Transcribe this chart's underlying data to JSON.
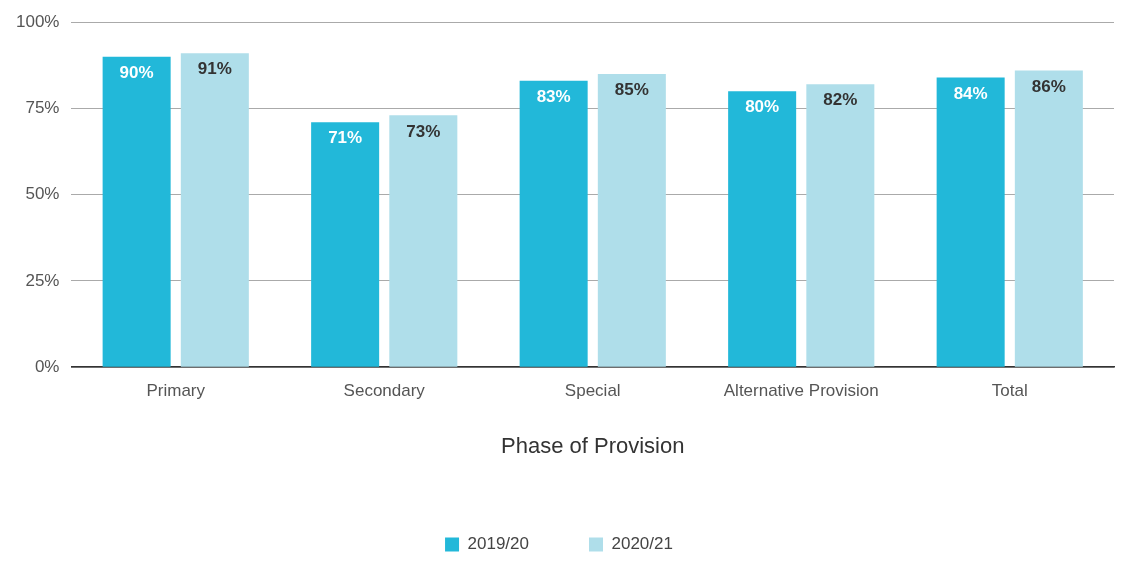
{
  "chart_data": {
    "type": "bar",
    "xlabel": "Phase of Provision",
    "categories": [
      "Primary",
      "Secondary",
      "Special",
      "Alternative Provision",
      "Total"
    ],
    "series": [
      {
        "name": "2019/20",
        "color": "#22b8d9",
        "values": [
          90,
          71,
          83,
          80,
          84
        ],
        "value_labels": [
          "90%",
          "71%",
          "83%",
          "80%",
          "84%"
        ]
      },
      {
        "name": "2020/21",
        "color": "#afdeea",
        "values": [
          91,
          73,
          85,
          82,
          86
        ],
        "value_labels": [
          "91%",
          "73%",
          "85%",
          "82%",
          "86%"
        ]
      }
    ],
    "ylim": [
      0,
      100
    ],
    "yticks": [
      {
        "value": 0,
        "label": "0%"
      },
      {
        "value": 25,
        "label": "25%"
      },
      {
        "value": 50,
        "label": "50%"
      },
      {
        "value": 75,
        "label": "75%"
      },
      {
        "value": 100,
        "label": "100%"
      }
    ],
    "grid": "y",
    "legend": "bottom"
  }
}
